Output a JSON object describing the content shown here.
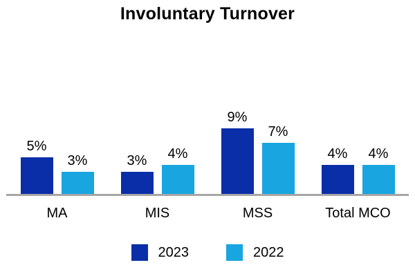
{
  "chart_data": {
    "type": "bar",
    "title": "Involuntary Turnover",
    "categories": [
      "MA",
      "MIS",
      "MSS",
      "Total MCO"
    ],
    "series": [
      {
        "name": "2023",
        "color": "#0A2EA8",
        "values": [
          5,
          3,
          9,
          4
        ]
      },
      {
        "name": "2022",
        "color": "#18A5E0",
        "values": [
          3,
          4,
          7,
          4
        ]
      }
    ],
    "value_suffix": "%",
    "data_labels": {
      "2023": [
        "5%",
        "3%",
        "9%",
        "4%"
      ],
      "2022": [
        "3%",
        "4%",
        "7%",
        "4%"
      ]
    },
    "ylim": [
      0,
      10
    ],
    "grid": false,
    "y_axis_visible": false,
    "legend_position": "bottom",
    "axis_line_color": "#A6A6A6",
    "text_color": "#000000",
    "background_color": "#FFFFFF"
  }
}
